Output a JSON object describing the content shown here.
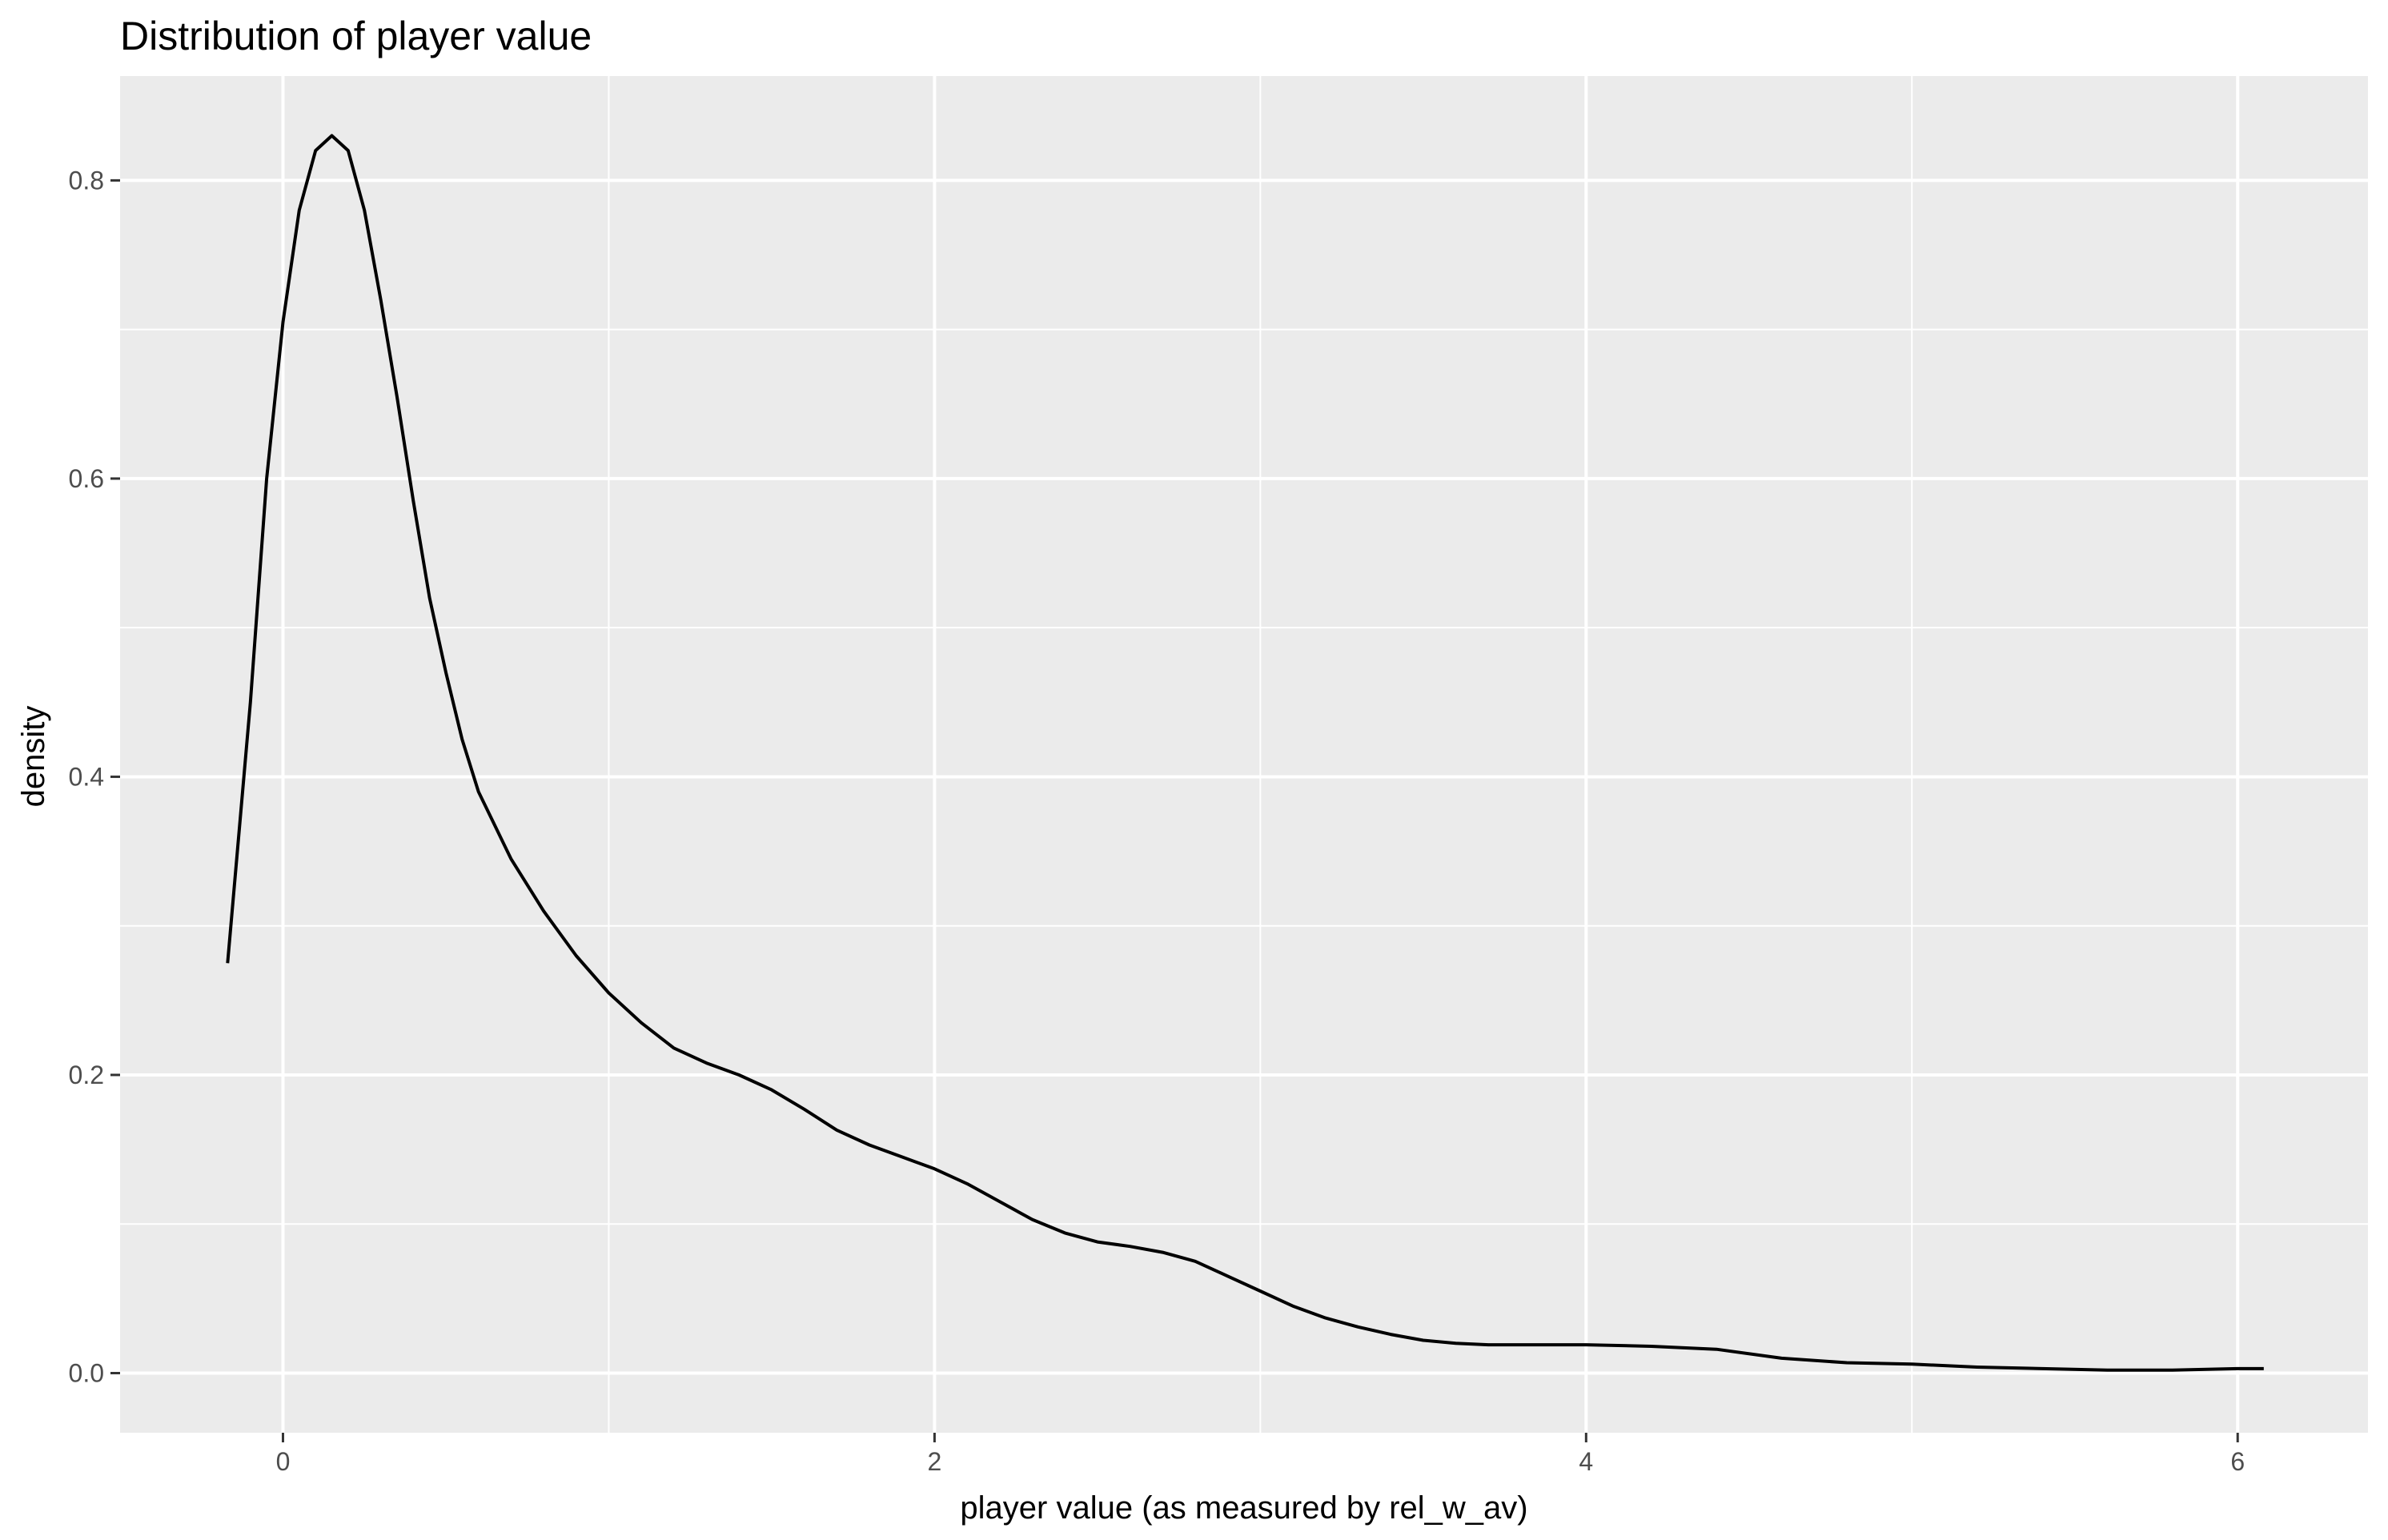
{
  "chart_data": {
    "type": "line",
    "title": "Distribution of player value",
    "xlabel": "player value (as measured by rel_w_av)",
    "ylabel": "density",
    "xlim": [
      -0.5,
      6.4
    ],
    "ylim": [
      -0.04,
      0.87
    ],
    "x_ticks": [
      0,
      2,
      4,
      6
    ],
    "x_tick_labels": [
      "0",
      "2",
      "4",
      "6"
    ],
    "x_minor_ticks": [
      1,
      3,
      5
    ],
    "y_ticks": [
      0.0,
      0.2,
      0.4,
      0.6,
      0.8
    ],
    "y_tick_labels": [
      "0.0",
      "0.2",
      "0.4",
      "0.6",
      "0.8"
    ],
    "y_minor_ticks": [
      0.1,
      0.3,
      0.5,
      0.7
    ],
    "grid": true,
    "legend": "none",
    "colors": {
      "panel": "#ebebeb",
      "grid": "#ffffff",
      "line": "#000000",
      "tick_text": "#4d4d4d"
    },
    "series": [
      {
        "x": [
          -0.17,
          -0.1,
          -0.05,
          0.0,
          0.05,
          0.1,
          0.15,
          0.2,
          0.25,
          0.3,
          0.35,
          0.4,
          0.45,
          0.5,
          0.55,
          0.6,
          0.7,
          0.8,
          0.9,
          1.0,
          1.1,
          1.2,
          1.3,
          1.4,
          1.5,
          1.6,
          1.7,
          1.8,
          1.9,
          2.0,
          2.1,
          2.2,
          2.3,
          2.4,
          2.5,
          2.6,
          2.7,
          2.8,
          2.9,
          3.0,
          3.1,
          3.2,
          3.3,
          3.4,
          3.5,
          3.6,
          3.7,
          3.8,
          4.0,
          4.2,
          4.4,
          4.6,
          4.8,
          5.0,
          5.2,
          5.4,
          5.6,
          5.8,
          6.0,
          6.08
        ],
        "y": [
          0.275,
          0.45,
          0.6,
          0.705,
          0.78,
          0.82,
          0.83,
          0.82,
          0.78,
          0.72,
          0.655,
          0.585,
          0.52,
          0.47,
          0.425,
          0.39,
          0.345,
          0.31,
          0.28,
          0.255,
          0.235,
          0.218,
          0.208,
          0.2,
          0.19,
          0.177,
          0.163,
          0.153,
          0.145,
          0.137,
          0.127,
          0.115,
          0.103,
          0.094,
          0.088,
          0.085,
          0.081,
          0.075,
          0.065,
          0.055,
          0.045,
          0.037,
          0.031,
          0.026,
          0.022,
          0.02,
          0.019,
          0.019,
          0.019,
          0.018,
          0.016,
          0.01,
          0.007,
          0.006,
          0.004,
          0.003,
          0.002,
          0.002,
          0.003,
          0.003
        ]
      }
    ]
  }
}
